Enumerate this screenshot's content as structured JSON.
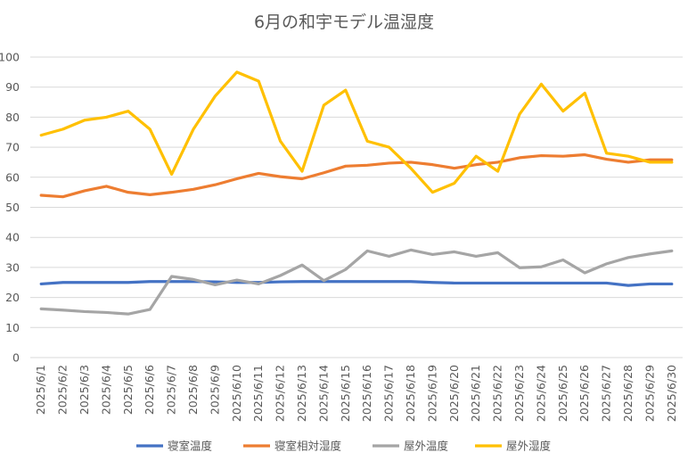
{
  "chart_data": {
    "type": "line",
    "title": "6月の和宇モデル温湿度",
    "xlabel": "",
    "ylabel": "",
    "ylim": [
      0,
      100
    ],
    "yticks": [
      0,
      10,
      20,
      30,
      40,
      50,
      60,
      70,
      80,
      90,
      100
    ],
    "grid": true,
    "legend_position": "bottom",
    "categories": [
      "2025/6/1",
      "2025/6/2",
      "2025/6/3",
      "2025/6/4",
      "2025/6/5",
      "2025/6/6",
      "2025/6/7",
      "2025/6/8",
      "2025/6/9",
      "2025/6/10",
      "2025/6/11",
      "2025/6/12",
      "2025/6/13",
      "2025/6/14",
      "2025/6/15",
      "2025/6/16",
      "2025/6/17",
      "2025/6/18",
      "2025/6/19",
      "2025/6/20",
      "2025/6/21",
      "2025/6/22",
      "2025/6/23",
      "2025/6/24",
      "2025/6/25",
      "2025/6/26",
      "2025/6/27",
      "2025/6/28",
      "2025/6/29",
      "2025/6/30"
    ],
    "series": [
      {
        "name": "寝室温度",
        "color": "#4472c4",
        "values": [
          24.5,
          25,
          25,
          25,
          25,
          25.3,
          25.3,
          25.3,
          25.2,
          25,
          25,
          25.2,
          25.3,
          25.3,
          25.3,
          25.3,
          25.3,
          25.3,
          25,
          24.8,
          24.8,
          24.8,
          24.8,
          24.8,
          24.8,
          24.8,
          24.8,
          24,
          24.5,
          24.5
        ]
      },
      {
        "name": "寝室相対湿度",
        "color": "#ed7d31",
        "values": [
          54,
          53.5,
          55.5,
          57,
          55,
          54.2,
          55,
          56,
          57.5,
          59.5,
          61.3,
          60.2,
          59.5,
          61.5,
          63.7,
          64,
          64.7,
          65,
          64.2,
          63,
          64.2,
          65,
          66.5,
          67.2,
          67,
          67.5,
          66,
          65,
          65.8,
          65.8
        ]
      },
      {
        "name": "屋外温度",
        "color": "#a5a5a5",
        "values": [
          16.2,
          15.8,
          15.3,
          15,
          14.5,
          16,
          27,
          26,
          24.2,
          25.8,
          24.5,
          27.3,
          30.8,
          25.6,
          29.3,
          35.5,
          33.7,
          35.8,
          34.3,
          35.2,
          33.7,
          34.9,
          29.9,
          30.2,
          32.5,
          28.2,
          31.2,
          33.3,
          34.5,
          35.5
        ]
      },
      {
        "name": "屋外湿度",
        "color": "#ffc000",
        "values": [
          74,
          76,
          79,
          80,
          82,
          76,
          61,
          76,
          87,
          95,
          92,
          72,
          62,
          84,
          89,
          72,
          70,
          63,
          55,
          58,
          67,
          62,
          81,
          91,
          82,
          88,
          68,
          67,
          65,
          65
        ]
      }
    ]
  }
}
